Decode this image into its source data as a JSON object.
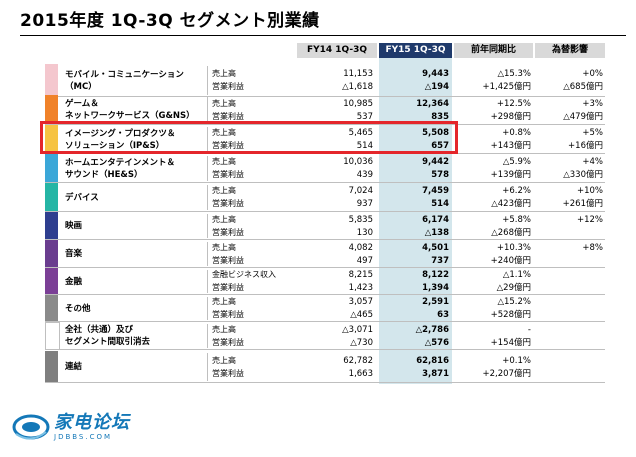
{
  "title": "2015年度 1Q-3Q セグメント別業績",
  "headers": {
    "fy14": "FY14 1Q-3Q",
    "fy15": "FY15 1Q-3Q",
    "yoy": "前年同期比",
    "fx": "為替影響"
  },
  "colors": {
    "highlight_header": "#1f3a6b",
    "highlight_column": "#d3e6ec",
    "header_gray": "#d9d9d9",
    "callout": "#e4262b"
  },
  "segments": [
    {
      "name1": "モバイル・コミュニケーション",
      "name2": "（MC）",
      "color": "#f4c7ce",
      "r1": {
        "label": "売上高",
        "fy14": "11,153",
        "fy15": "9,443",
        "yoy": "△15.3%",
        "fx": "+0%"
      },
      "r2": {
        "label": "営業利益",
        "fy14": "△1,618",
        "fy15": "△194",
        "yoy": "+1,425億円",
        "fx": "△685億円"
      }
    },
    {
      "name1": "ゲーム＆",
      "name2": "ネットワークサービス（G&NS）",
      "color": "#f0822a",
      "r1": {
        "label": "売上高",
        "fy14": "10,985",
        "fy15": "12,364",
        "yoy": "+12.5%",
        "fx": "+3%"
      },
      "r2": {
        "label": "営業利益",
        "fy14": "537",
        "fy15": "835",
        "yoy": "+298億円",
        "fx": "△479億円"
      }
    },
    {
      "name1": "イメージング・プロダクツ＆",
      "name2": "ソリューション（IP&S）",
      "color": "#f6c343",
      "r1": {
        "label": "売上高",
        "fy14": "5,465",
        "fy15": "5,508",
        "yoy": "+0.8%",
        "fx": "+5%"
      },
      "r2": {
        "label": "営業利益",
        "fy14": "514",
        "fy15": "657",
        "yoy": "+143億円",
        "fx": "+16億円"
      }
    },
    {
      "name1": "ホームエンタテインメント＆",
      "name2": "サウンド（HE&S）",
      "color": "#3ba7d8",
      "r1": {
        "label": "売上高",
        "fy14": "10,036",
        "fy15": "9,442",
        "yoy": "△5.9%",
        "fx": "+4%"
      },
      "r2": {
        "label": "営業利益",
        "fy14": "439",
        "fy15": "578",
        "yoy": "+139億円",
        "fx": "△330億円"
      }
    },
    {
      "name1": "デバイス",
      "name2": "",
      "color": "#25b5a5",
      "r1": {
        "label": "売上高",
        "fy14": "7,024",
        "fy15": "7,459",
        "yoy": "+6.2%",
        "fx": "+10%"
      },
      "r2": {
        "label": "営業利益",
        "fy14": "937",
        "fy15": "514",
        "yoy": "△423億円",
        "fx": "+261億円"
      }
    },
    {
      "name1": "映画",
      "name2": "",
      "color": "#2e3e8f",
      "r1": {
        "label": "売上高",
        "fy14": "5,835",
        "fy15": "6,174",
        "yoy": "+5.8%",
        "fx": "+12%"
      },
      "r2": {
        "label": "営業利益",
        "fy14": "130",
        "fy15": "△138",
        "yoy": "△268億円",
        "fx": ""
      }
    },
    {
      "name1": "音楽",
      "name2": "",
      "color": "#6a3d8f",
      "r1": {
        "label": "売上高",
        "fy14": "4,082",
        "fy15": "4,501",
        "yoy": "+10.3%",
        "fx": "+8%"
      },
      "r2": {
        "label": "営業利益",
        "fy14": "497",
        "fy15": "737",
        "yoy": "+240億円",
        "fx": ""
      }
    },
    {
      "name1": "金融",
      "name2": "",
      "color": "#7b3f96",
      "r1": {
        "label": "金融ビジネス収入",
        "fy14": "8,215",
        "fy15": "8,122",
        "yoy": "△1.1%",
        "fx": ""
      },
      "r2": {
        "label": "営業利益",
        "fy14": "1,423",
        "fy15": "1,394",
        "yoy": "△29億円",
        "fx": ""
      }
    },
    {
      "name1": "その他",
      "name2": "",
      "color": "#8a8a8a",
      "r1": {
        "label": "売上高",
        "fy14": "3,057",
        "fy15": "2,591",
        "yoy": "△15.2%",
        "fx": ""
      },
      "r2": {
        "label": "営業利益",
        "fy14": "△465",
        "fy15": "63",
        "yoy": "+528億円",
        "fx": ""
      }
    },
    {
      "name1": "全社（共通）及び",
      "name2": "セグメント間取引消去",
      "color": "#ffffff",
      "r1": {
        "label": "売上高",
        "fy14": "△3,071",
        "fy15": "△2,786",
        "yoy": "-",
        "fx": ""
      },
      "r2": {
        "label": "営業利益",
        "fy14": "△730",
        "fy15": "△576",
        "yoy": "+154億円",
        "fx": ""
      }
    },
    {
      "name1": "連結",
      "name2": "",
      "color": "#7f7f7f",
      "r1": {
        "label": "売上高",
        "fy14": "62,782",
        "fy15": "62,816",
        "yoy": "+0.1%",
        "fx": ""
      },
      "r2": {
        "label": "営業利益",
        "fy14": "1,663",
        "fy15": "3,871",
        "yoy": "+2,207億円",
        "fx": ""
      }
    }
  ],
  "watermark": {
    "name": "家电论坛",
    "url": "JDBBS.COM"
  }
}
